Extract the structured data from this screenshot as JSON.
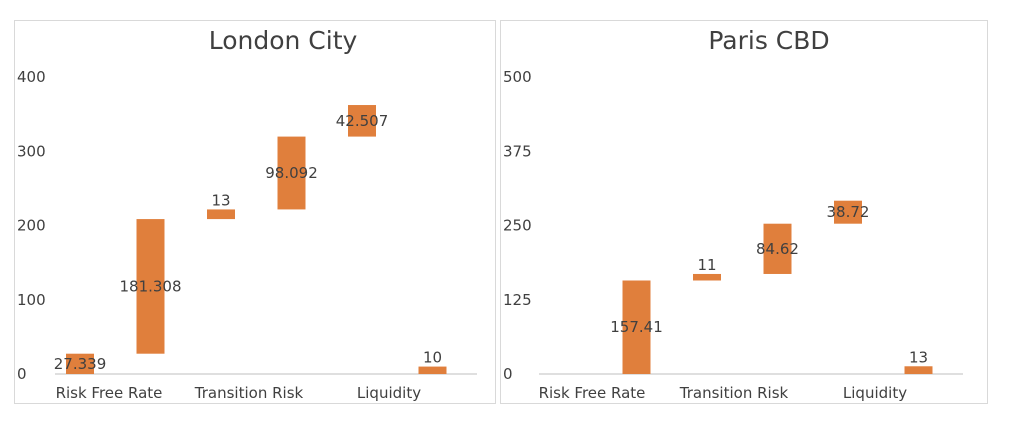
{
  "colors": {
    "bar": "#E07F3C",
    "axis": "#BFBFBF",
    "text": "#404040"
  },
  "chart_data": [
    {
      "type": "bar",
      "subtype": "waterfall",
      "title": "London City",
      "ylim": [
        0,
        400
      ],
      "yticks": [
        "0",
        "100",
        "200",
        "300",
        "400"
      ],
      "grid": false,
      "categories": [
        "Risk Free Rate",
        "Transition Risk",
        "Liquidity"
      ],
      "bars": [
        {
          "start": 0,
          "value": 27.339,
          "label": "27.339"
        },
        {
          "start": 27.339,
          "value": 181.308,
          "label": "181.308"
        },
        {
          "start": 208.647,
          "value": 13,
          "label": "13"
        },
        {
          "start": 221.647,
          "value": 98.092,
          "label": "98.092"
        },
        {
          "start": 319.739,
          "value": 42.507,
          "label": "42.507"
        },
        {
          "start": 0,
          "value": 10,
          "label": "10"
        }
      ]
    },
    {
      "type": "bar",
      "subtype": "waterfall",
      "title": "Paris CBD",
      "ylim": [
        0,
        500
      ],
      "yticks": [
        "0",
        "125",
        "250",
        "375",
        "500"
      ],
      "grid": false,
      "categories": [
        "Risk Free Rate",
        "Transition Risk",
        "Liquidity"
      ],
      "bars": [
        {
          "start": 0,
          "value": 0,
          "label": ""
        },
        {
          "start": 0,
          "value": 157.41,
          "label": "157.41"
        },
        {
          "start": 157.41,
          "value": 11,
          "label": "11"
        },
        {
          "start": 168.41,
          "value": 84.62,
          "label": "84.62"
        },
        {
          "start": 253.03,
          "value": 38.72,
          "label": "38.72"
        },
        {
          "start": 0,
          "value": 13,
          "label": "13"
        }
      ]
    }
  ]
}
